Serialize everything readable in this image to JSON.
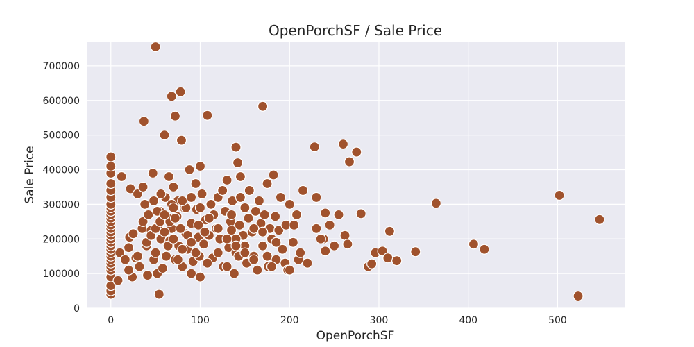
{
  "chart_data": {
    "type": "scatter",
    "title": "OpenPorchSF / Sale Price",
    "xlabel": "OpenPorchSF",
    "ylabel": "Sale Price",
    "xlim": [
      -27,
      575
    ],
    "ylim": [
      0,
      770000
    ],
    "xticks": [
      0,
      100,
      200,
      300,
      400,
      500
    ],
    "yticks": [
      0,
      100000,
      200000,
      300000,
      400000,
      500000,
      600000,
      700000
    ],
    "grid": true,
    "marker_color": "#a0522d",
    "marker_edge": "#ffffff",
    "background": "#eaeaf2",
    "x": [
      0,
      0,
      0,
      0,
      0,
      0,
      0,
      0,
      0,
      0,
      0,
      0,
      0,
      0,
      0,
      0,
      0,
      0,
      0,
      0,
      0,
      0,
      0,
      0,
      0,
      0,
      0,
      0,
      0,
      0,
      8,
      10,
      12,
      16,
      20,
      21,
      22,
      24,
      25,
      28,
      30,
      32,
      35,
      36,
      37,
      38,
      40,
      41,
      42,
      45,
      47,
      48,
      50,
      50,
      52,
      53,
      54,
      55,
      56,
      58,
      60,
      61,
      62,
      64,
      65,
      66,
      68,
      68,
      70,
      72,
      72,
      74,
      75,
      76,
      78,
      79,
      80,
      82,
      84,
      86,
      88,
      90,
      90,
      92,
      95,
      96,
      98,
      99,
      100,
      100,
      102,
      104,
      106,
      108,
      110,
      112,
      114,
      115,
      118,
      120,
      120,
      122,
      125,
      126,
      128,
      130,
      132,
      134,
      135,
      136,
      138,
      140,
      140,
      142,
      144,
      145,
      148,
      150,
      152,
      154,
      155,
      158,
      160,
      162,
      164,
      166,
      168,
      170,
      170,
      172,
      175,
      176,
      178,
      180,
      182,
      184,
      185,
      188,
      190,
      192,
      195,
      196,
      198,
      200,
      204,
      205,
      208,
      210,
      212,
      215,
      36,
      48,
      52,
      56,
      60,
      64,
      66,
      68,
      70,
      72,
      75,
      78,
      80,
      84,
      86,
      90,
      95,
      98,
      105,
      108,
      130,
      135,
      140,
      143,
      145,
      150,
      160,
      170,
      175,
      185,
      228,
      230,
      238,
      240,
      260,
      267,
      275,
      296,
      304,
      230,
      235,
      240,
      245,
      250,
      255,
      262,
      265,
      280,
      288,
      292,
      310,
      312,
      320,
      341,
      364,
      406,
      418,
      502,
      523,
      547,
      20,
      30,
      40,
      45,
      50,
      55,
      60,
      70,
      80,
      90,
      100,
      110,
      120,
      130,
      140,
      150,
      160,
      180,
      200,
      220
    ],
    "y": [
      40000,
      50000,
      65000,
      90000,
      110000,
      120000,
      130000,
      140000,
      150000,
      160000,
      170000,
      180000,
      190000,
      200000,
      210000,
      220000,
      230000,
      240000,
      250000,
      260000,
      270000,
      280000,
      290000,
      300000,
      320000,
      340000,
      360000,
      390000,
      410000,
      437000,
      80000,
      160000,
      380000,
      140000,
      175000,
      205000,
      345000,
      90000,
      215000,
      145000,
      330000,
      120000,
      230000,
      250000,
      540000,
      300000,
      180000,
      95000,
      270000,
      225000,
      390000,
      140000,
      755000,
      160000,
      100000,
      240000,
      40000,
      280000,
      200000,
      115000,
      500000,
      320000,
      150000,
      260000,
      380000,
      195000,
      230000,
      612000,
      350000,
      140000,
      555000,
      265000,
      310000,
      180000,
      625000,
      485000,
      120000,
      290000,
      215000,
      170000,
      400000,
      245000,
      100000,
      135000,
      360000,
      285000,
      205000,
      150000,
      410000,
      90000,
      330000,
      185000,
      255000,
      557000,
      210000,
      300000,
      145000,
      270000,
      230000,
      320000,
      160000,
      200000,
      340000,
      120000,
      280000,
      370000,
      175000,
      250000,
      225000,
      310000,
      100000,
      465000,
      160000,
      420000,
      240000,
      380000,
      210000,
      290000,
      130000,
      260000,
      340000,
      220000,
      150000,
      280000,
      110000,
      310000,
      245000,
      583000,
      180000,
      270000,
      360000,
      120000,
      230000,
      200000,
      385000,
      265000,
      140000,
      225000,
      320000,
      170000,
      130000,
      240000,
      110000,
      300000,
      190000,
      240000,
      270000,
      140000,
      160000,
      340000,
      350000,
      310000,
      280000,
      330000,
      220000,
      180000,
      250000,
      300000,
      200000,
      260000,
      140000,
      230000,
      170000,
      290000,
      210000,
      190000,
      160000,
      240000,
      220000,
      130000,
      120000,
      270000,
      200000,
      150000,
      320000,
      180000,
      230000,
      220000,
      150000,
      190000,
      466000,
      230000,
      200000,
      275000,
      474000,
      423000,
      451000,
      160000,
      165000,
      320000,
      200000,
      165000,
      240000,
      180000,
      270000,
      210000,
      185000,
      273000,
      120000,
      128000,
      145000,
      222000,
      137000,
      163000,
      303000,
      185000,
      170000,
      326000,
      35000,
      256000,
      110000,
      150000,
      190000,
      210000,
      230000,
      250000,
      270000,
      290000,
      310000,
      320000,
      290000,
      260000,
      230000,
      200000,
      180000,
      160000,
      140000,
      120000,
      110000,
      130000
    ]
  }
}
